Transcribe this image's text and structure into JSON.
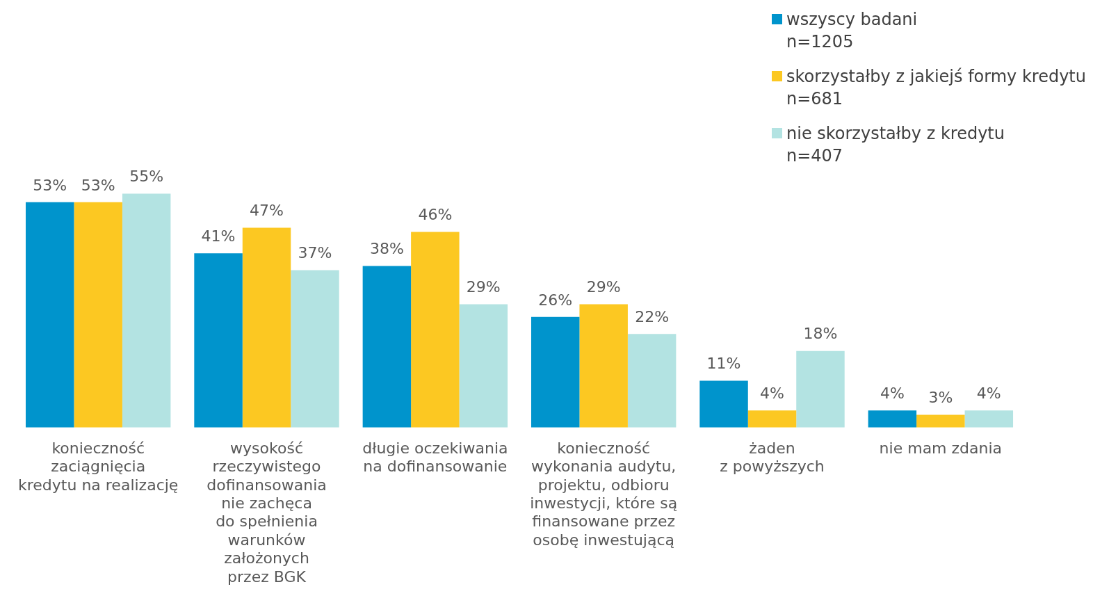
{
  "chart_data": {
    "type": "bar",
    "categories": [
      "konieczność\nzaciągnięcia\nkredytu na realizację",
      "wysokość\nrzeczywistego\ndofinansowania\nnie zachęca\ndo spełnienia\nwarunków\nzałożonych\nprzez BGK",
      "długie oczekiwania\nna dofinansowanie",
      "konieczność\nwykonania audytu,\nprojektu, odbioru\ninwestycji, które są\nfinansowane przez\nosobę inwestującą",
      "żaden\nz powyższych",
      "nie mam zdania"
    ],
    "series": [
      {
        "name": "wszyscy badani\nn=1205",
        "color": "#0094cc",
        "values": [
          53,
          41,
          38,
          26,
          11,
          4
        ],
        "value_labels": [
          "53%",
          "41%",
          "38%",
          "26%",
          "11%",
          "4%"
        ]
      },
      {
        "name": "skorzystałby z jakiejś formy kredytu\nn=681",
        "color": "#fcc822",
        "values": [
          53,
          47,
          46,
          29,
          4,
          3
        ],
        "value_labels": [
          "53%",
          "47%",
          "46%",
          "29%",
          "4%",
          "3%"
        ]
      },
      {
        "name": "nie skorzystałby z kredytu\nn=407",
        "color": "#b3e3e2",
        "values": [
          55,
          37,
          29,
          22,
          18,
          4
        ],
        "value_labels": [
          "55%",
          "37%",
          "29%",
          "22%",
          "18%",
          "4%"
        ]
      }
    ],
    "grid": false,
    "legend": "top right"
  }
}
